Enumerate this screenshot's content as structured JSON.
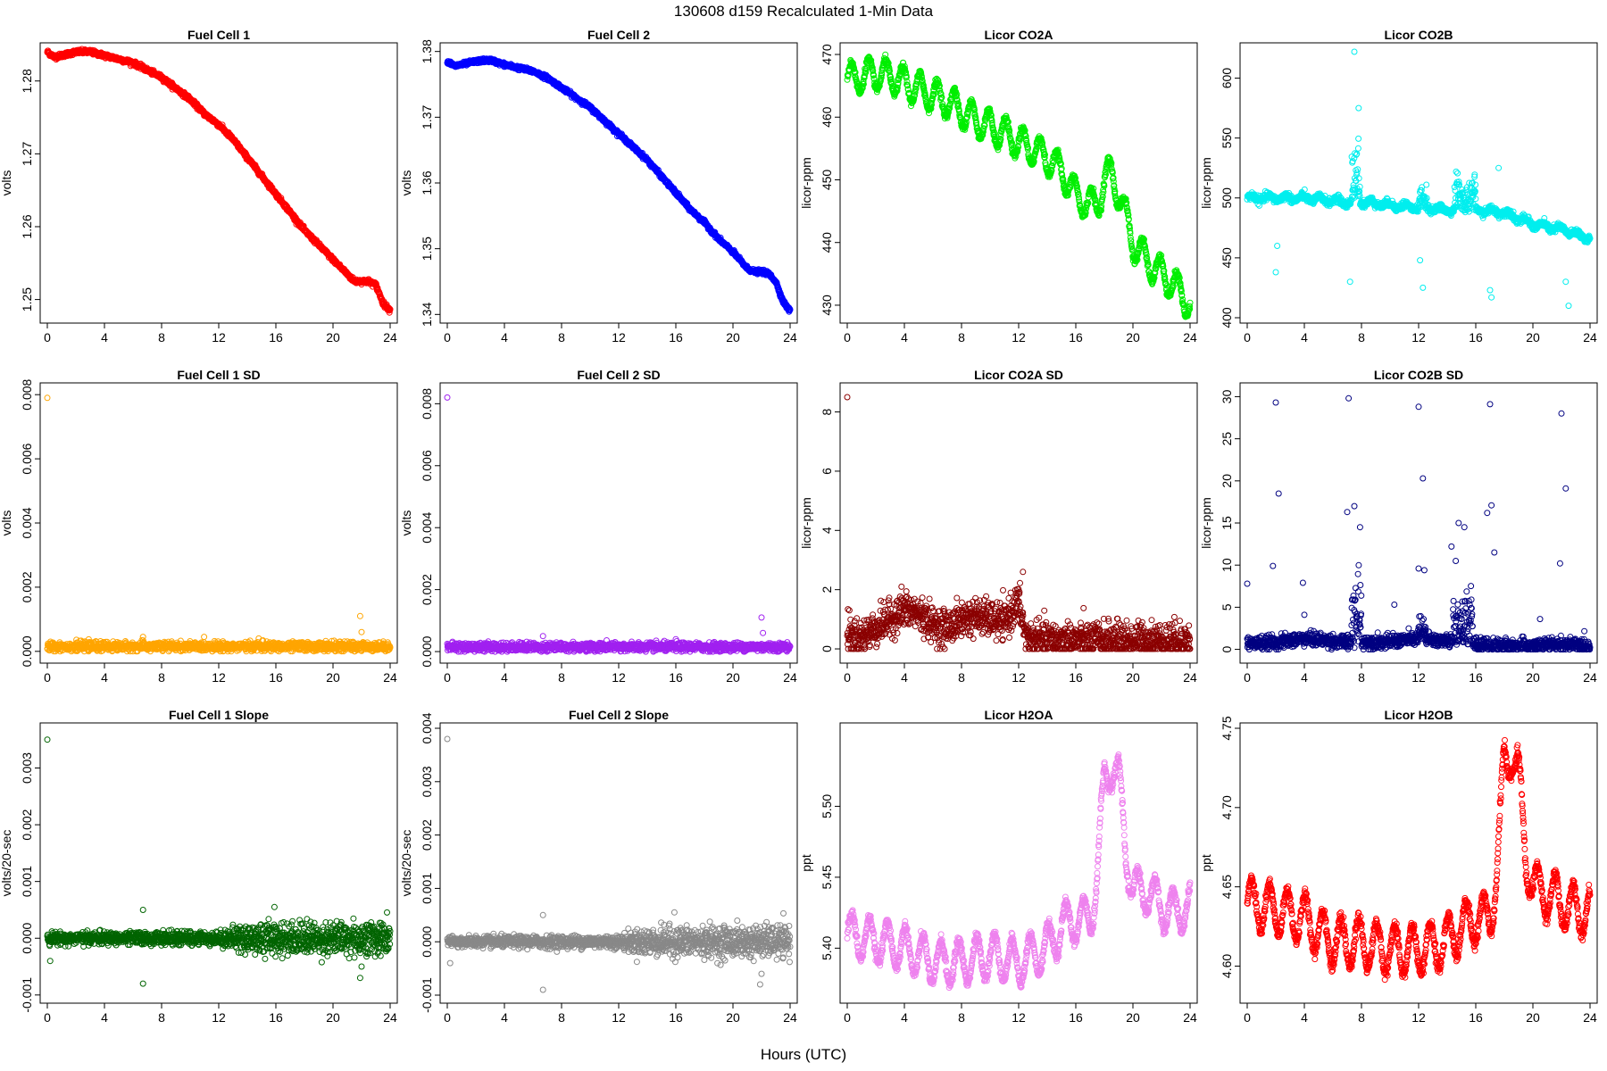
{
  "page": {
    "title": "130608   d159   Recalculated 1-Min Data",
    "xlabel": "Hours (UTC)"
  },
  "chart_data": [
    {
      "type": "scatter",
      "title": "Fuel Cell 1",
      "ylabel": "volts",
      "color": "#ff0000",
      "xlim": [
        0,
        24
      ],
      "ylim": [
        1.2475,
        1.2845
      ],
      "yticks": [
        1.25,
        1.26,
        1.27,
        1.28
      ],
      "ytick_labels": [
        "1.25",
        "1.26",
        "1.27",
        "1.28"
      ],
      "xticks": [
        0,
        4,
        8,
        12,
        16,
        20,
        24
      ],
      "xtick_labels": [
        "0",
        "4",
        "8",
        "12",
        "16",
        "20",
        "24"
      ],
      "x": [
        0,
        0.5,
        1,
        2,
        3,
        4,
        5,
        6,
        7,
        8,
        9,
        10,
        11,
        12,
        13,
        14,
        15,
        16,
        17,
        18,
        19,
        20,
        21,
        21.5,
        22,
        22.5,
        23,
        23.5,
        24
      ],
      "y": [
        1.284,
        1.2833,
        1.2835,
        1.284,
        1.284,
        1.2835,
        1.283,
        1.2825,
        1.2815,
        1.2805,
        1.279,
        1.2775,
        1.2755,
        1.274,
        1.272,
        1.2695,
        1.267,
        1.2645,
        1.262,
        1.2595,
        1.2575,
        1.2555,
        1.2535,
        1.2525,
        1.2525,
        1.2525,
        1.252,
        1.2495,
        1.2485
      ],
      "noise": 0.00015,
      "n": 1440
    },
    {
      "type": "scatter",
      "title": "Fuel Cell 2",
      "ylabel": "volts",
      "color": "#0000ff",
      "xlim": [
        0,
        24
      ],
      "ylim": [
        1.3395,
        1.3805
      ],
      "yticks": [
        1.34,
        1.35,
        1.36,
        1.37,
        1.38
      ],
      "ytick_labels": [
        "1.34",
        "1.35",
        "1.36",
        "1.37",
        "1.38"
      ],
      "xticks": [
        0,
        4,
        8,
        12,
        16,
        20,
        24
      ],
      "xtick_labels": [
        "0",
        "4",
        "8",
        "12",
        "16",
        "20",
        "24"
      ],
      "x": [
        0,
        0.5,
        1,
        2,
        3,
        4,
        5,
        6,
        7,
        8,
        9,
        10,
        11,
        12,
        13,
        14,
        15,
        16,
        17,
        18,
        19,
        20,
        21,
        21.5,
        22,
        22.5,
        23,
        23.5,
        24
      ],
      "y": [
        1.3785,
        1.3778,
        1.378,
        1.3785,
        1.3787,
        1.378,
        1.3775,
        1.377,
        1.376,
        1.3745,
        1.373,
        1.3715,
        1.3695,
        1.3675,
        1.3655,
        1.3635,
        1.361,
        1.3585,
        1.356,
        1.354,
        1.3515,
        1.3495,
        1.347,
        1.3465,
        1.3465,
        1.3462,
        1.345,
        1.342,
        1.3405
      ],
      "noise": 0.00015,
      "n": 1440
    },
    {
      "type": "scatter",
      "title": "Licor CO2A",
      "ylabel": "licor-ppm",
      "color": "#00ee00",
      "xlim": [
        0,
        24
      ],
      "ylim": [
        428,
        471
      ],
      "yticks": [
        430,
        440,
        450,
        460,
        470
      ],
      "ytick_labels": [
        "430",
        "440",
        "450",
        "460",
        "470"
      ],
      "xticks": [
        0,
        4,
        8,
        12,
        16,
        20,
        24
      ],
      "xtick_labels": [
        "0",
        "4",
        "8",
        "12",
        "16",
        "20",
        "24"
      ],
      "x": [
        0,
        1,
        2,
        3,
        4,
        5,
        6,
        7,
        8,
        9,
        10,
        11,
        12,
        13,
        14,
        15,
        16,
        17,
        17.5,
        18,
        18.5,
        19,
        19.5,
        20,
        21,
        22,
        23,
        24
      ],
      "y": [
        466,
        466.5,
        467,
        466.5,
        465.5,
        464.5,
        463.5,
        462.5,
        461,
        459.5,
        458.5,
        457.5,
        456,
        455,
        453.5,
        451.5,
        447.5,
        446,
        446,
        450,
        451,
        448,
        444,
        440,
        437,
        435,
        433,
        430
      ],
      "osc_amp": 2.5,
      "osc_period": 1.2,
      "noise": 0.3,
      "n": 1440
    },
    {
      "type": "scatter",
      "title": "Licor CO2B",
      "ylabel": "licor-ppm",
      "color": "#00eeee",
      "xlim": [
        0,
        24
      ],
      "ylim": [
        400,
        625
      ],
      "yticks": [
        400,
        450,
        500,
        550,
        600
      ],
      "ytick_labels": [
        "400",
        "450",
        "500",
        "550",
        "600"
      ],
      "xticks": [
        0,
        4,
        8,
        12,
        16,
        20,
        24
      ],
      "xtick_labels": [
        "0",
        "4",
        "8",
        "12",
        "16",
        "20",
        "24"
      ],
      "x": [
        0,
        2,
        4,
        6,
        7,
        7.5,
        8,
        10,
        12,
        14,
        16,
        18,
        20,
        22,
        24
      ],
      "y": [
        500,
        500,
        500,
        498,
        496,
        498,
        497,
        494,
        492,
        490,
        490,
        488,
        478,
        474,
        466
      ],
      "osc_amp": 2,
      "osc_period": 1.2,
      "noise": 1.5,
      "n": 1440,
      "spikes": [
        [
          7.3,
          7.9,
          40
        ],
        [
          14.5,
          16.0,
          20
        ],
        [
          12.0,
          12.6,
          10
        ]
      ],
      "outliers": [
        [
          2.0,
          438
        ],
        [
          2.1,
          460
        ],
        [
          7.2,
          430
        ],
        [
          7.5,
          622
        ],
        [
          12.3,
          425
        ],
        [
          12.1,
          448
        ],
        [
          17.1,
          417
        ],
        [
          17.0,
          423
        ],
        [
          22.5,
          410
        ],
        [
          22.3,
          430
        ],
        [
          7.8,
          575
        ],
        [
          17.6,
          525
        ]
      ]
    },
    {
      "type": "scatter",
      "title": "Fuel Cell 1 SD",
      "ylabel": "volts",
      "color": "#ffa500",
      "xlim": [
        0,
        24
      ],
      "ylim": [
        -0.0002,
        0.0082
      ],
      "yticks": [
        0,
        0.002,
        0.004,
        0.006,
        0.008
      ],
      "ytick_labels": [
        "0.000",
        "0.002",
        "0.004",
        "0.006",
        "0.008"
      ],
      "xticks": [
        0,
        4,
        8,
        12,
        16,
        20,
        24
      ],
      "xtick_labels": [
        "0",
        "4",
        "8",
        "12",
        "16",
        "20",
        "24"
      ],
      "x": [
        0,
        24
      ],
      "y": [
        0.00015,
        0.00015
      ],
      "noise": 7e-05,
      "n": 1440,
      "outliers": [
        [
          0.0,
          0.0079
        ],
        [
          21.9,
          0.0011
        ],
        [
          6.7,
          0.00045
        ],
        [
          14.8,
          0.0004
        ],
        [
          22.0,
          0.0006
        ]
      ]
    },
    {
      "type": "scatter",
      "title": "Fuel Cell 2 SD",
      "ylabel": "volts",
      "color": "#a020f0",
      "xlim": [
        0,
        24
      ],
      "ylim": [
        -0.0002,
        0.0085
      ],
      "yticks": [
        0,
        0.002,
        0.004,
        0.006,
        0.008
      ],
      "ytick_labels": [
        "0.000",
        "0.002",
        "0.004",
        "0.006",
        "0.008"
      ],
      "xticks": [
        0,
        4,
        8,
        12,
        16,
        20,
        24
      ],
      "xtick_labels": [
        "0",
        "4",
        "8",
        "12",
        "16",
        "20",
        "24"
      ],
      "x": [
        0,
        24
      ],
      "y": [
        0.00015,
        0.00015
      ],
      "noise": 7e-05,
      "n": 1440,
      "outliers": [
        [
          0.0,
          0.0082
        ],
        [
          22.0,
          0.0011
        ],
        [
          6.7,
          0.0005
        ],
        [
          22.1,
          0.0006
        ],
        [
          16.0,
          0.0004
        ]
      ]
    },
    {
      "type": "scatter",
      "title": "Licor CO2A SD",
      "ylabel": "licor-ppm",
      "color": "#8b0000",
      "xlim": [
        0,
        24
      ],
      "ylim": [
        -0.3,
        8.8
      ],
      "yticks": [
        0,
        2,
        4,
        6,
        8
      ],
      "ytick_labels": [
        "0",
        "2",
        "4",
        "6",
        "8"
      ],
      "xticks": [
        0,
        4,
        8,
        12,
        16,
        20,
        24
      ],
      "xtick_labels": [
        "0",
        "4",
        "8",
        "12",
        "16",
        "20",
        "24"
      ],
      "x": [
        0,
        0.5,
        1,
        2,
        3,
        4,
        5,
        6,
        7,
        8,
        9,
        10,
        11,
        12,
        12.5,
        13,
        16,
        20,
        24
      ],
      "y": [
        0.5,
        0.4,
        0.4,
        0.7,
        1.0,
        1.3,
        1.2,
        0.8,
        0.7,
        1.0,
        1.1,
        1.0,
        0.9,
        1.6,
        0.4,
        0.3,
        0.3,
        0.3,
        0.3
      ],
      "noise": 0.3,
      "n": 1440,
      "outliers": [
        [
          0.0,
          8.5
        ],
        [
          12.3,
          2.6
        ],
        [
          0.15,
          1.3
        ],
        [
          3.8,
          2.1
        ]
      ]
    },
    {
      "type": "scatter",
      "title": "Licor CO2B SD",
      "ylabel": "licor-ppm",
      "color": "#000080",
      "xlim": [
        0,
        24
      ],
      "ylim": [
        -1,
        31
      ],
      "yticks": [
        0,
        5,
        10,
        15,
        20,
        25,
        30
      ],
      "ytick_labels": [
        "0",
        "5",
        "10",
        "15",
        "20",
        "25",
        "30"
      ],
      "xticks": [
        0,
        4,
        8,
        12,
        16,
        20,
        24
      ],
      "xtick_labels": [
        "0",
        "4",
        "8",
        "12",
        "16",
        "20",
        "24"
      ],
      "x": [
        0,
        2,
        4,
        6,
        7,
        7.5,
        8,
        10,
        12,
        14,
        16,
        20,
        22,
        24
      ],
      "y": [
        0.7,
        0.8,
        1.3,
        1.0,
        0.8,
        1.0,
        0.9,
        0.9,
        1.3,
        1.0,
        0.5,
        0.4,
        0.6,
        0.4
      ],
      "noise": 0.4,
      "n": 1440,
      "spikes": [
        [
          7.3,
          8.0,
          8
        ],
        [
          14.4,
          15.8,
          4
        ],
        [
          12.0,
          12.5,
          2
        ]
      ],
      "outliers": [
        [
          0.0,
          7.8
        ],
        [
          2.0,
          29.3
        ],
        [
          1.8,
          9.9
        ],
        [
          2.2,
          18.5
        ],
        [
          3.9,
          7.9
        ],
        [
          4.0,
          4.1
        ],
        [
          7.1,
          29.8
        ],
        [
          7.0,
          16.3
        ],
        [
          7.5,
          17.0
        ],
        [
          7.9,
          14.5
        ],
        [
          10.3,
          5.3
        ],
        [
          12.0,
          28.8
        ],
        [
          12.3,
          20.3
        ],
        [
          12.0,
          9.6
        ],
        [
          12.4,
          9.4
        ],
        [
          14.3,
          12.2
        ],
        [
          14.6,
          10.5
        ],
        [
          14.8,
          15.0
        ],
        [
          15.2,
          14.5
        ],
        [
          17.0,
          29.1
        ],
        [
          16.8,
          16.2
        ],
        [
          17.1,
          17.1
        ],
        [
          17.3,
          11.5
        ],
        [
          22.0,
          28.0
        ],
        [
          22.3,
          19.1
        ],
        [
          21.9,
          10.2
        ],
        [
          20.5,
          3.6
        ]
      ]
    },
    {
      "type": "scatter",
      "title": "Fuel Cell 1 Slope",
      "ylabel": "volts/20-sec",
      "color": "#006400",
      "xlim": [
        0,
        24
      ],
      "ylim": [
        -0.00105,
        0.0037
      ],
      "yticks": [
        -0.001,
        0,
        0.001,
        0.002,
        0.003
      ],
      "ytick_labels": [
        "-0.001",
        "0.000",
        "0.001",
        "0.002",
        "0.003"
      ],
      "xticks": [
        0,
        4,
        8,
        12,
        16,
        20,
        24
      ],
      "xtick_labels": [
        "0",
        "4",
        "8",
        "12",
        "16",
        "20",
        "24"
      ],
      "x": [
        0,
        24
      ],
      "y": [
        0,
        0
      ],
      "noise_profile": [
        [
          0,
          5e-05
        ],
        [
          12,
          6e-05
        ],
        [
          13.5,
          0.00012
        ],
        [
          16,
          0.00014
        ],
        [
          24,
          0.00015
        ]
      ],
      "n": 1440,
      "outliers": [
        [
          0.0,
          0.0035
        ],
        [
          0.2,
          -0.0004
        ],
        [
          6.7,
          0.0005
        ],
        [
          6.7,
          -0.0008
        ],
        [
          15.9,
          0.00055
        ],
        [
          21.9,
          -0.0007
        ],
        [
          22.0,
          -0.0005
        ]
      ]
    },
    {
      "type": "scatter",
      "title": "Fuel Cell 2 Slope",
      "ylabel": "volts/20-sec",
      "color": "#888888",
      "xlim": [
        0,
        24
      ],
      "ylim": [
        -0.00105,
        0.004
      ],
      "yticks": [
        -0.001,
        0,
        0.001,
        0.002,
        0.003,
        0.004
      ],
      "ytick_labels": [
        "-0.001",
        "0.000",
        "0.001",
        "0.002",
        "0.003",
        "0.004"
      ],
      "xticks": [
        0,
        4,
        8,
        12,
        16,
        20,
        24
      ],
      "xtick_labels": [
        "0",
        "4",
        "8",
        "12",
        "16",
        "20",
        "24"
      ],
      "x": [
        0,
        24
      ],
      "y": [
        0,
        0
      ],
      "noise_profile": [
        [
          0,
          5e-05
        ],
        [
          12,
          6e-05
        ],
        [
          13.5,
          0.00012
        ],
        [
          16,
          0.00014
        ],
        [
          24,
          0.00015
        ]
      ],
      "n": 1440,
      "outliers": [
        [
          0.0,
          0.0038
        ],
        [
          0.2,
          -0.0004
        ],
        [
          6.7,
          0.0005
        ],
        [
          6.7,
          -0.0009
        ],
        [
          15.9,
          0.00055
        ],
        [
          21.9,
          -0.0008
        ],
        [
          22.0,
          -0.0006
        ]
      ]
    },
    {
      "type": "scatter",
      "title": "Licor H2OA",
      "ylabel": "ppt",
      "color": "#ee82ee",
      "xlim": [
        0,
        24
      ],
      "ylim": [
        5.365,
        5.555
      ],
      "yticks": [
        5.4,
        5.45,
        5.5
      ],
      "ytick_labels": [
        "5.40",
        "5.45",
        "5.50"
      ],
      "xticks": [
        0,
        4,
        8,
        12,
        16,
        20,
        24
      ],
      "xtick_labels": [
        "0",
        "4",
        "8",
        "12",
        "16",
        "20",
        "24"
      ],
      "x": [
        0,
        2,
        4,
        6,
        8,
        10,
        12,
        14,
        15,
        16,
        17,
        17.5,
        18,
        18.5,
        19,
        19.5,
        20,
        21,
        22,
        23,
        24
      ],
      "y": [
        5.41,
        5.405,
        5.4,
        5.39,
        5.39,
        5.395,
        5.39,
        5.4,
        5.415,
        5.42,
        5.42,
        5.45,
        5.52,
        5.53,
        5.52,
        5.47,
        5.44,
        5.44,
        5.43,
        5.425,
        5.43
      ],
      "osc_amp": 0.015,
      "osc_period": 1.25,
      "noise": 0.002,
      "n": 1440
    },
    {
      "type": "scatter",
      "title": "Licor H2OB",
      "ylabel": "ppt",
      "color": "#ff0000",
      "xlim": [
        0,
        24
      ],
      "ylim": [
        4.58,
        4.75
      ],
      "yticks": [
        4.6,
        4.65,
        4.7,
        4.75
      ],
      "ytick_labels": [
        "4.60",
        "4.65",
        "4.70",
        "4.75"
      ],
      "xticks": [
        0,
        4,
        8,
        12,
        16,
        20,
        24
      ],
      "xtick_labels": [
        "0",
        "4",
        "8",
        "12",
        "16",
        "20",
        "24"
      ],
      "x": [
        0,
        2,
        4,
        6,
        8,
        10,
        12,
        14,
        15,
        16,
        17,
        17.5,
        18,
        18.5,
        19,
        19.5,
        20,
        21,
        22,
        23,
        24
      ],
      "y": [
        4.64,
        4.635,
        4.63,
        4.615,
        4.615,
        4.61,
        4.61,
        4.615,
        4.625,
        4.63,
        4.63,
        4.66,
        4.73,
        4.735,
        4.72,
        4.67,
        4.65,
        4.645,
        4.64,
        4.635,
        4.635
      ],
      "osc_amp": 0.015,
      "osc_period": 1.25,
      "noise": 0.002,
      "n": 1440
    }
  ]
}
